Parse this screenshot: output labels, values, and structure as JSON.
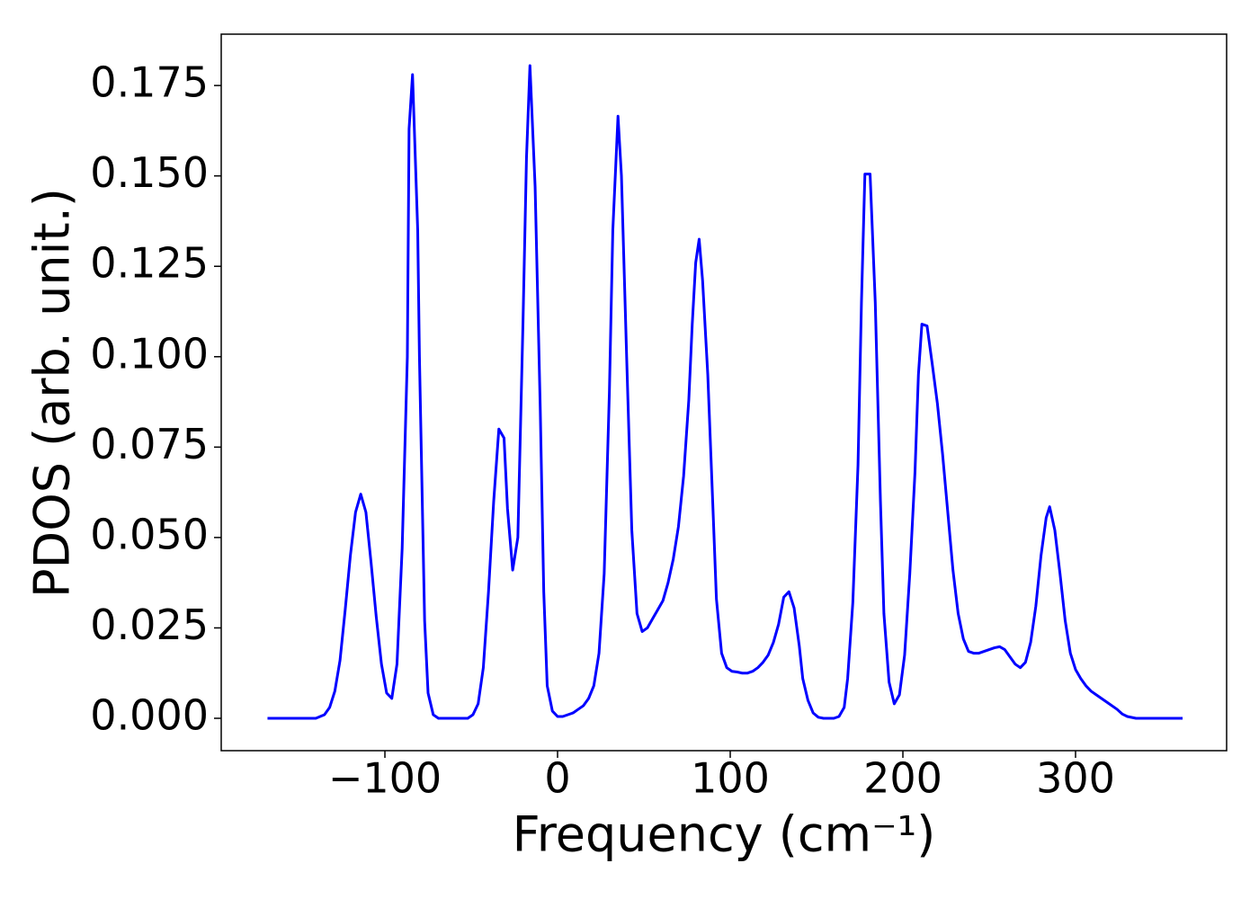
{
  "chart_data": {
    "type": "line",
    "xlabel": "Frequency (cm⁻¹)",
    "ylabel": "PDOS (arb. unit.)",
    "x": [
      -168,
      -140,
      -135,
      -132,
      -129,
      -126,
      -123,
      -120,
      -117,
      -114,
      -111,
      -108,
      -105,
      -102,
      -99,
      -96,
      -93,
      -90,
      -87,
      -86,
      -84,
      -81,
      -80,
      -77,
      -75,
      -72,
      -69,
      -52,
      -49,
      -46,
      -43,
      -40,
      -37,
      -34,
      -31,
      -29,
      -26,
      -23,
      -20,
      -18,
      -16,
      -13,
      -10,
      -8,
      -6,
      -3,
      0,
      3,
      6,
      9,
      12,
      15,
      18,
      21,
      24,
      27,
      30,
      32,
      35,
      37,
      40,
      43,
      46,
      49,
      52,
      55,
      58,
      61,
      64,
      67,
      70,
      73,
      76,
      78,
      80,
      82,
      84,
      87,
      90,
      92,
      95,
      98,
      101,
      104,
      107,
      110,
      113,
      116,
      119,
      122,
      125,
      128,
      131,
      134,
      137,
      140,
      142,
      145,
      148,
      151,
      154,
      160,
      163,
      166,
      168,
      171,
      174,
      176,
      178,
      181,
      184,
      187,
      189,
      192,
      195,
      198,
      201,
      204,
      207,
      209,
      211,
      214,
      217,
      220,
      223,
      226,
      229,
      232,
      235,
      238,
      241,
      244,
      247,
      250,
      253,
      256,
      259,
      262,
      265,
      268,
      271,
      274,
      277,
      280,
      283,
      285,
      288,
      291,
      294,
      297,
      300,
      303,
      306,
      309,
      312,
      318,
      324,
      327,
      330,
      335,
      362
    ],
    "series": [
      {
        "color": "#0000ff",
        "values": [
          0,
          0,
          0.001,
          0.003,
          0.0075,
          0.016,
          0.03,
          0.045,
          0.057,
          0.062,
          0.057,
          0.043,
          0.028,
          0.015,
          0.007,
          0.0055,
          0.015,
          0.047,
          0.1,
          0.163,
          0.178,
          0.135,
          0.1,
          0.027,
          0.007,
          0.001,
          0,
          0,
          0.001,
          0.004,
          0.014,
          0.035,
          0.06,
          0.08,
          0.0775,
          0.058,
          0.041,
          0.05,
          0.11,
          0.155,
          0.1805,
          0.147,
          0.085,
          0.035,
          0.009,
          0.002,
          0.0005,
          0.0005,
          0.001,
          0.0015,
          0.0025,
          0.0035,
          0.0055,
          0.009,
          0.018,
          0.04,
          0.09,
          0.135,
          0.1665,
          0.15,
          0.1,
          0.052,
          0.029,
          0.024,
          0.025,
          0.0275,
          0.03,
          0.0325,
          0.0375,
          0.044,
          0.053,
          0.067,
          0.088,
          0.109,
          0.126,
          0.1325,
          0.121,
          0.095,
          0.058,
          0.033,
          0.018,
          0.014,
          0.013,
          0.0128,
          0.0125,
          0.0125,
          0.013,
          0.014,
          0.0155,
          0.0175,
          0.021,
          0.026,
          0.0335,
          0.035,
          0.0305,
          0.02,
          0.011,
          0.005,
          0.0015,
          0.0003,
          0,
          0,
          0.0005,
          0.003,
          0.011,
          0.032,
          0.07,
          0.115,
          0.1505,
          0.1505,
          0.115,
          0.06,
          0.029,
          0.01,
          0.004,
          0.0065,
          0.0175,
          0.04,
          0.068,
          0.095,
          0.109,
          0.1085,
          0.098,
          0.087,
          0.073,
          0.057,
          0.041,
          0.029,
          0.022,
          0.0185,
          0.018,
          0.018,
          0.0185,
          0.019,
          0.0195,
          0.0198,
          0.019,
          0.017,
          0.015,
          0.014,
          0.0155,
          0.021,
          0.031,
          0.045,
          0.0555,
          0.0585,
          0.052,
          0.04,
          0.027,
          0.018,
          0.0135,
          0.011,
          0.009,
          0.0075,
          0.0065,
          0.0045,
          0.0025,
          0.0012,
          0.0005,
          0,
          0
        ]
      }
    ],
    "xlim": [
      -194.8,
      387.5
    ],
    "ylim": [
      -0.00895,
      0.1892
    ],
    "xticks": [
      {
        "value": -100,
        "label": "−100"
      },
      0,
      100,
      200,
      300
    ],
    "yticks": [
      {
        "value": 0,
        "label": "0.000"
      },
      {
        "value": 0.025,
        "label": "0.025"
      },
      {
        "value": 0.05,
        "label": "0.050"
      },
      {
        "value": 0.075,
        "label": "0.075"
      },
      {
        "value": 0.1,
        "label": "0.100"
      },
      {
        "value": 0.125,
        "label": "0.125"
      },
      {
        "value": 0.15,
        "label": "0.150"
      },
      {
        "value": 0.175,
        "label": "0.175"
      }
    ]
  }
}
